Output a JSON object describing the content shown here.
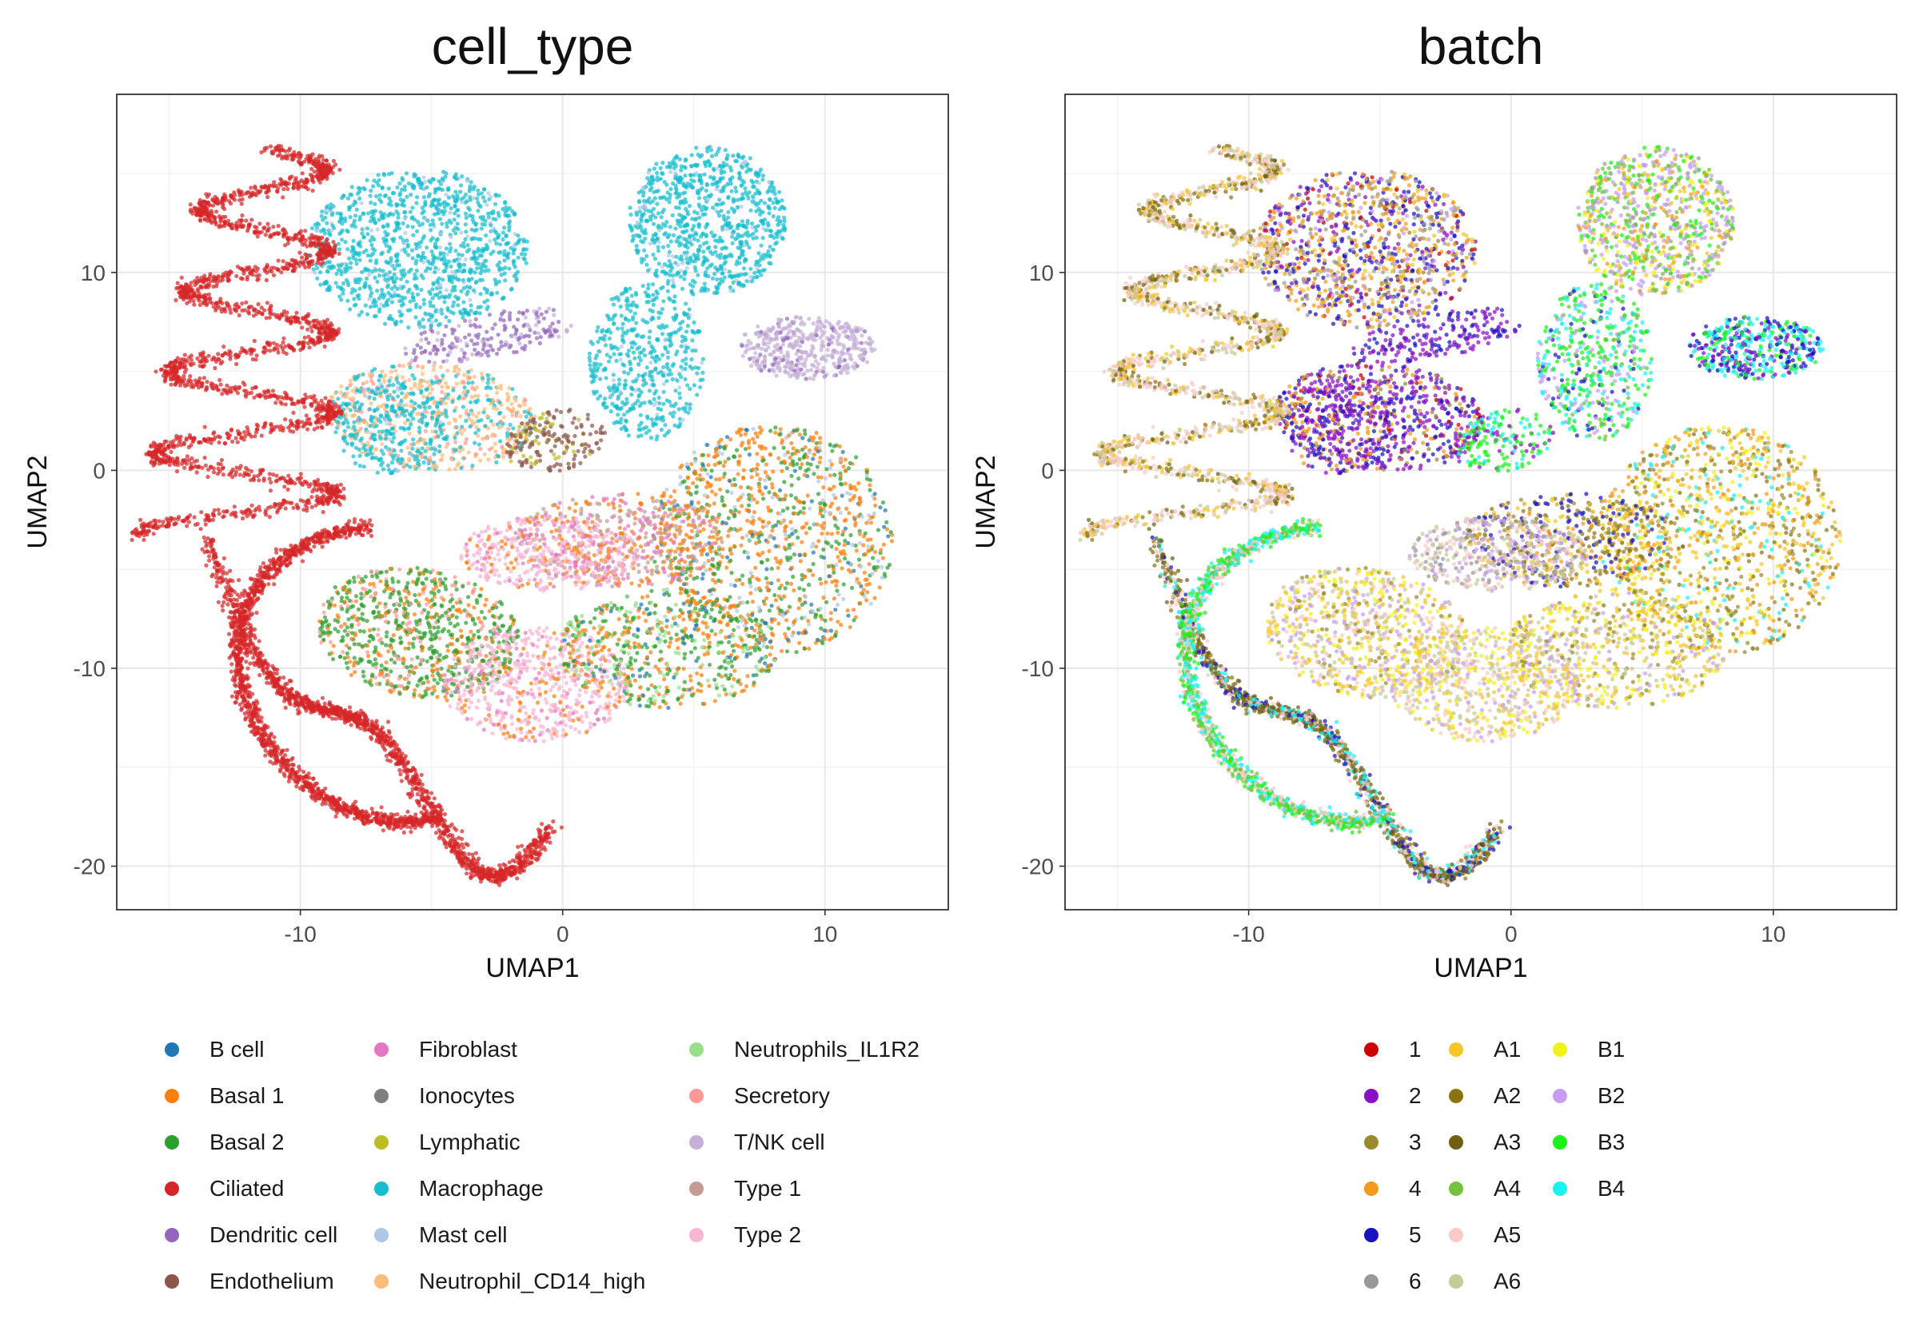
{
  "chart_data": [
    {
      "type": "scatter",
      "title": "cell_type",
      "xlabel": "UMAP1",
      "ylabel": "UMAP2",
      "xlim": [
        -17,
        14.7
      ],
      "ylim": [
        -22.2,
        19
      ],
      "xticks": [
        -10,
        0,
        10
      ],
      "yticks": [
        -20,
        -10,
        0,
        10
      ],
      "grid": true,
      "legend_position": "bottom",
      "legend": [
        {
          "label": "B cell",
          "color": "#1f77b4"
        },
        {
          "label": "Basal 1",
          "color": "#ff7f0e"
        },
        {
          "label": "Basal 2",
          "color": "#2ca02c"
        },
        {
          "label": "Ciliated",
          "color": "#d62728"
        },
        {
          "label": "Dendritic cell",
          "color": "#9467bd"
        },
        {
          "label": "Endothelium",
          "color": "#8c564b"
        },
        {
          "label": "Fibroblast",
          "color": "#e377c2"
        },
        {
          "label": "Ionocytes",
          "color": "#7f7f7f"
        },
        {
          "label": "Lymphatic",
          "color": "#bcbd22"
        },
        {
          "label": "Macrophage",
          "color": "#17becf"
        },
        {
          "label": "Mast cell",
          "color": "#aec7e8"
        },
        {
          "label": "Neutrophil_CD14_high",
          "color": "#ffbb78"
        },
        {
          "label": "Neutrophils_IL1R2",
          "color": "#98df8a"
        },
        {
          "label": "Secretory",
          "color": "#ff9896"
        },
        {
          "label": "T/NK cell",
          "color": "#c5b0d5"
        },
        {
          "label": "Type 1",
          "color": "#c49c94"
        },
        {
          "label": "Type 2",
          "color": "#f7b6d2"
        }
      ]
    },
    {
      "type": "scatter",
      "title": "batch",
      "xlabel": "UMAP1",
      "ylabel": "UMAP2",
      "xlim": [
        -17,
        14.7
      ],
      "ylim": [
        -22.2,
        19
      ],
      "xticks": [
        -10,
        0,
        10
      ],
      "yticks": [
        -20,
        -10,
        0,
        10
      ],
      "grid": true,
      "legend_position": "bottom",
      "legend": [
        {
          "label": "1",
          "color": "#cc0000"
        },
        {
          "label": "2",
          "color": "#8a0fc4"
        },
        {
          "label": "3",
          "color": "#9a8a2c"
        },
        {
          "label": "4",
          "color": "#f59a1c"
        },
        {
          "label": "5",
          "color": "#1a12c0"
        },
        {
          "label": "6",
          "color": "#999999"
        },
        {
          "label": "A1",
          "color": "#f5c629"
        },
        {
          "label": "A2",
          "color": "#8a7412"
        },
        {
          "label": "A3",
          "color": "#6e5f12"
        },
        {
          "label": "A4",
          "color": "#72c23a"
        },
        {
          "label": "A5",
          "color": "#f8cbc8"
        },
        {
          "label": "A6",
          "color": "#c9c99a"
        },
        {
          "label": "B1",
          "color": "#f2f21a"
        },
        {
          "label": "B2",
          "color": "#c79df2"
        },
        {
          "label": "B3",
          "color": "#1af21a"
        },
        {
          "label": "B4",
          "color": "#1af2f2"
        }
      ]
    }
  ]
}
